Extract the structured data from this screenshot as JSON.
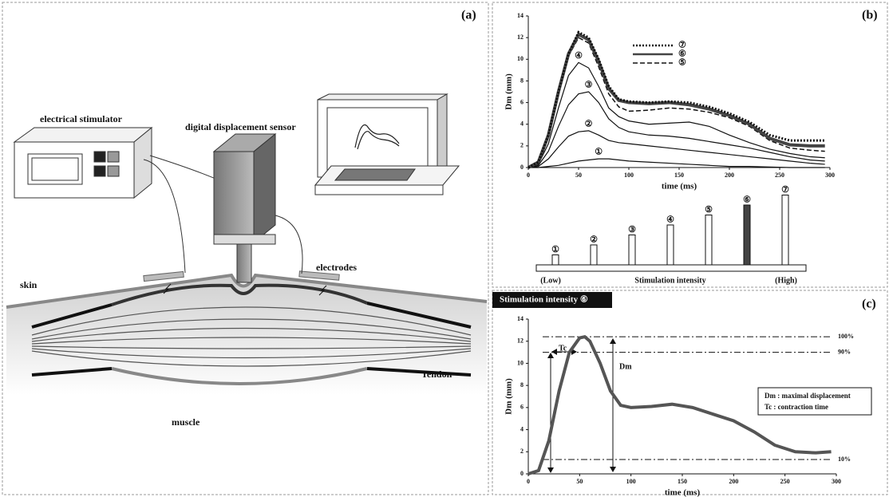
{
  "panel_a": {
    "label": "(a)",
    "stimulator": "electrical stimulator",
    "sensor": "digital displacement sensor",
    "electrodes": "electrodes",
    "skin": "skin",
    "tendon": "Tendon",
    "muscle": "muscle"
  },
  "panel_b": {
    "label": "(b)",
    "chart": {
      "type": "line",
      "ylabel": "Dm (mm)",
      "xlabel": "time (ms)",
      "xlim": [
        0,
        300
      ],
      "ylim": [
        0,
        14
      ],
      "xticks": [
        0,
        50,
        100,
        150,
        200,
        250,
        300
      ],
      "yticks": [
        0,
        2,
        4,
        6,
        8,
        10,
        12,
        14
      ],
      "x": [
        0,
        10,
        20,
        30,
        40,
        50,
        60,
        70,
        80,
        90,
        100,
        120,
        140,
        160,
        180,
        200,
        220,
        240,
        260,
        280,
        295
      ],
      "series": [
        {
          "name": "①",
          "color": "#111",
          "style": "solid",
          "values": [
            0,
            0,
            0.1,
            0.2,
            0.4,
            0.6,
            0.7,
            0.8,
            0.8,
            0.7,
            0.6,
            0.5,
            0.4,
            0.3,
            0.2,
            0.1,
            0.1,
            0.05,
            0,
            0,
            0
          ]
        },
        {
          "name": "②",
          "color": "#111",
          "style": "solid",
          "values": [
            0,
            0.1,
            0.8,
            1.9,
            2.9,
            3.3,
            3.4,
            3.0,
            2.5,
            2.3,
            2.2,
            2.0,
            1.8,
            1.6,
            1.4,
            1.2,
            1.0,
            0.8,
            0.6,
            0.4,
            0.3
          ]
        },
        {
          "name": "③",
          "color": "#111",
          "style": "solid",
          "values": [
            0,
            0.2,
            1.5,
            3.8,
            5.8,
            6.8,
            7.0,
            6.0,
            4.5,
            3.7,
            3.3,
            3.0,
            2.9,
            2.7,
            2.4,
            2.1,
            1.8,
            1.4,
            1.0,
            0.7,
            0.6
          ]
        },
        {
          "name": "④",
          "color": "#111",
          "style": "solid",
          "values": [
            0,
            0.3,
            2.2,
            5.5,
            8.5,
            9.7,
            9.2,
            7.5,
            5.5,
            4.7,
            4.3,
            4.0,
            4.1,
            4.2,
            3.8,
            3.0,
            2.3,
            1.7,
            1.3,
            1.0,
            0.9
          ]
        },
        {
          "name": "⑤",
          "color": "#111",
          "style": "dashed",
          "legend": true,
          "values": [
            0,
            0.4,
            2.8,
            6.8,
            10.3,
            12.0,
            11.5,
            9.3,
            6.8,
            5.6,
            5.2,
            5.3,
            5.5,
            5.4,
            5.1,
            4.6,
            3.8,
            2.5,
            1.8,
            1.6,
            1.5
          ]
        },
        {
          "name": "⑥",
          "color": "#444",
          "style": "bold",
          "legend": true,
          "values": [
            0,
            0.5,
            3,
            7,
            10.5,
            12.3,
            11.8,
            9.8,
            7.3,
            6.2,
            6.0,
            5.9,
            6.0,
            5.8,
            5.4,
            4.8,
            4.0,
            2.7,
            2.1,
            2.0,
            2.0
          ]
        },
        {
          "name": "⑦",
          "color": "#111",
          "style": "dotted",
          "legend": true,
          "values": [
            0,
            0.5,
            3,
            7,
            10.5,
            12.5,
            12,
            10,
            7.5,
            6.3,
            6.1,
            6.0,
            6.1,
            6.0,
            5.6,
            5.0,
            4.2,
            3.0,
            2.5,
            2.5,
            2.5
          ]
        }
      ]
    },
    "intensity": {
      "categories": [
        "①",
        "②",
        "③",
        "④",
        "⑤",
        "⑥",
        "⑦"
      ],
      "values": [
        1,
        2,
        3,
        4,
        5,
        6,
        7
      ],
      "colors": [
        "#fff",
        "#fff",
        "#fff",
        "#fff",
        "#fff",
        "#444",
        "#fff"
      ],
      "low": "(Low)",
      "title": "Stimulation intensity",
      "high": "(High)"
    }
  },
  "panel_c": {
    "label": "(c)",
    "title": "Stimulation intensity ⑥",
    "chart": {
      "type": "line",
      "ylabel": "Dm (mm)",
      "xlabel": "time (ms)",
      "xlim": [
        0,
        300
      ],
      "ylim": [
        0,
        14
      ],
      "xticks": [
        0,
        50,
        100,
        150,
        200,
        250,
        300
      ],
      "yticks": [
        0,
        2,
        4,
        6,
        8,
        10,
        12,
        14
      ],
      "color": "#555",
      "x": [
        0,
        10,
        20,
        30,
        40,
        50,
        55,
        60,
        70,
        80,
        90,
        100,
        120,
        140,
        160,
        180,
        200,
        220,
        240,
        260,
        280,
        295
      ],
      "values": [
        0,
        0.3,
        3,
        7.5,
        11,
        12.3,
        12.4,
        12,
        10,
        7.5,
        6.2,
        6.0,
        6.1,
        6.3,
        6.0,
        5.4,
        4.8,
        3.8,
        2.6,
        2.0,
        1.9,
        2.0
      ],
      "ref_lines": [
        {
          "value": 12.4,
          "label": "100%"
        },
        {
          "value": 11,
          "label": "90%"
        },
        {
          "value": 1.3,
          "label": "10%"
        }
      ]
    },
    "tc": "Tc",
    "dm": "Dm",
    "legend": [
      "Dm : maximal displacement",
      "Tc : contraction time"
    ]
  }
}
